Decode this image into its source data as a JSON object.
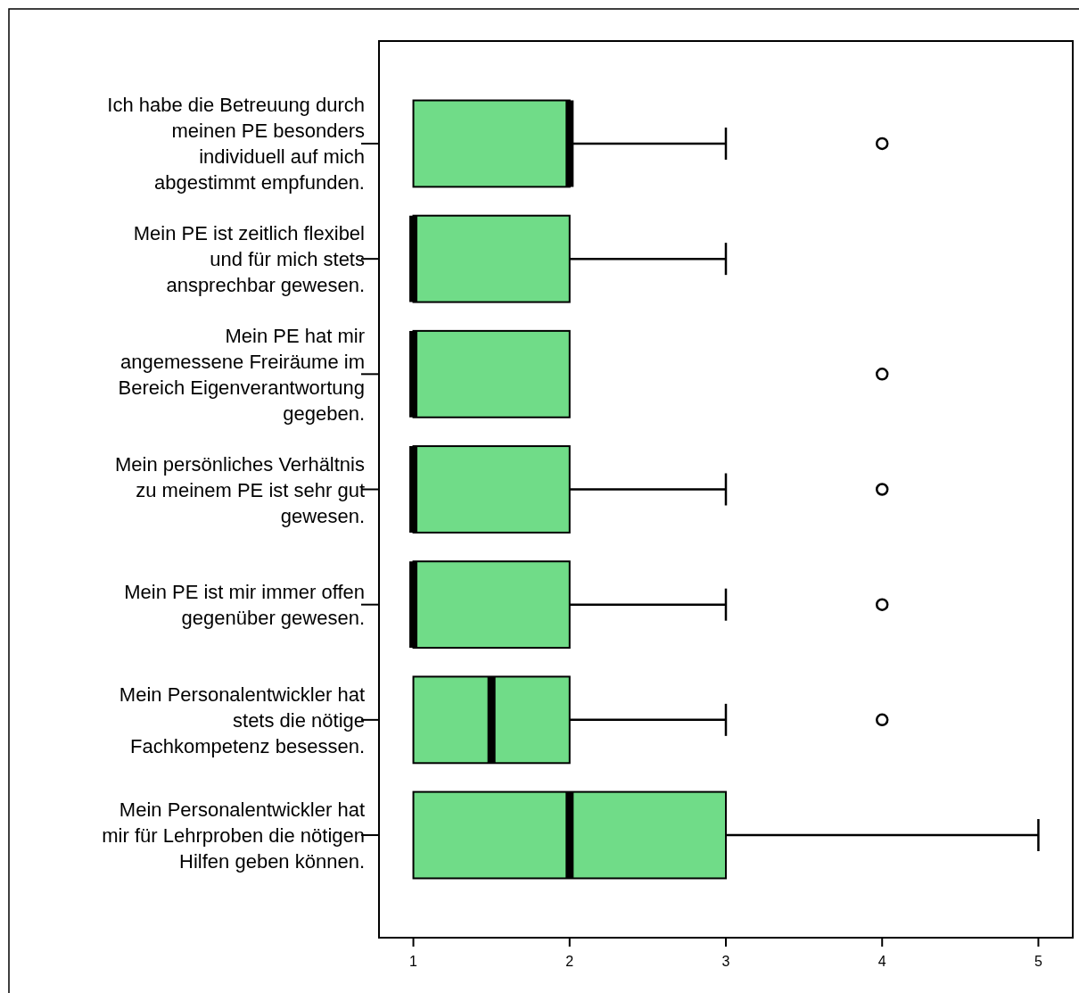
{
  "chart_data": {
    "type": "box",
    "orientation": "horizontal",
    "color": "#70dc88",
    "categories": [
      "Ich habe die Betreuung durch meinen PE besonders individuell auf mich abgestimmt empfunden.",
      "Mein PE ist zeitlich flexibel und für mich stets ansprechbar gewesen.",
      "Mein PE hat mir angemessene Freiräume im Bereich Eigenverantwortung gegeben.",
      "Mein persönliches Verhältnis zu meinem PE ist sehr gut gewesen.",
      "Mein PE ist mir immer offen gegenüber gewesen.",
      "Mein Personalentwickler hat stets die nötige Fachkompetenz besessen.",
      "Mein Personalentwickler hat mir für Lehrproben die nötigen Hilfen geben können."
    ],
    "boxes": [
      {
        "low": 1,
        "q1": 1,
        "median": 2,
        "q3": 2,
        "high": 3,
        "outliers": [
          4
        ]
      },
      {
        "low": 1,
        "q1": 1,
        "median": 1,
        "q3": 2,
        "high": 3
      },
      {
        "low": 1,
        "q1": 1,
        "median": 1,
        "q3": 2,
        "high": 2,
        "outliers": [
          4
        ]
      },
      {
        "low": 1,
        "q1": 1,
        "median": 1,
        "q3": 2,
        "high": 3,
        "outliers": [
          4
        ]
      },
      {
        "low": 1,
        "q1": 1,
        "median": 1,
        "q3": 2,
        "high": 3,
        "outliers": [
          4
        ]
      },
      {
        "low": 1,
        "q1": 1,
        "median": 1.5,
        "q3": 2,
        "high": 3,
        "outliers": [
          4
        ]
      },
      {
        "low": 1,
        "q1": 1,
        "median": 2,
        "q3": 3,
        "high": 5
      }
    ],
    "xlim": [
      0.78,
      5.22
    ],
    "xticks": [
      1,
      2,
      3,
      4,
      5
    ],
    "grid": false
  }
}
